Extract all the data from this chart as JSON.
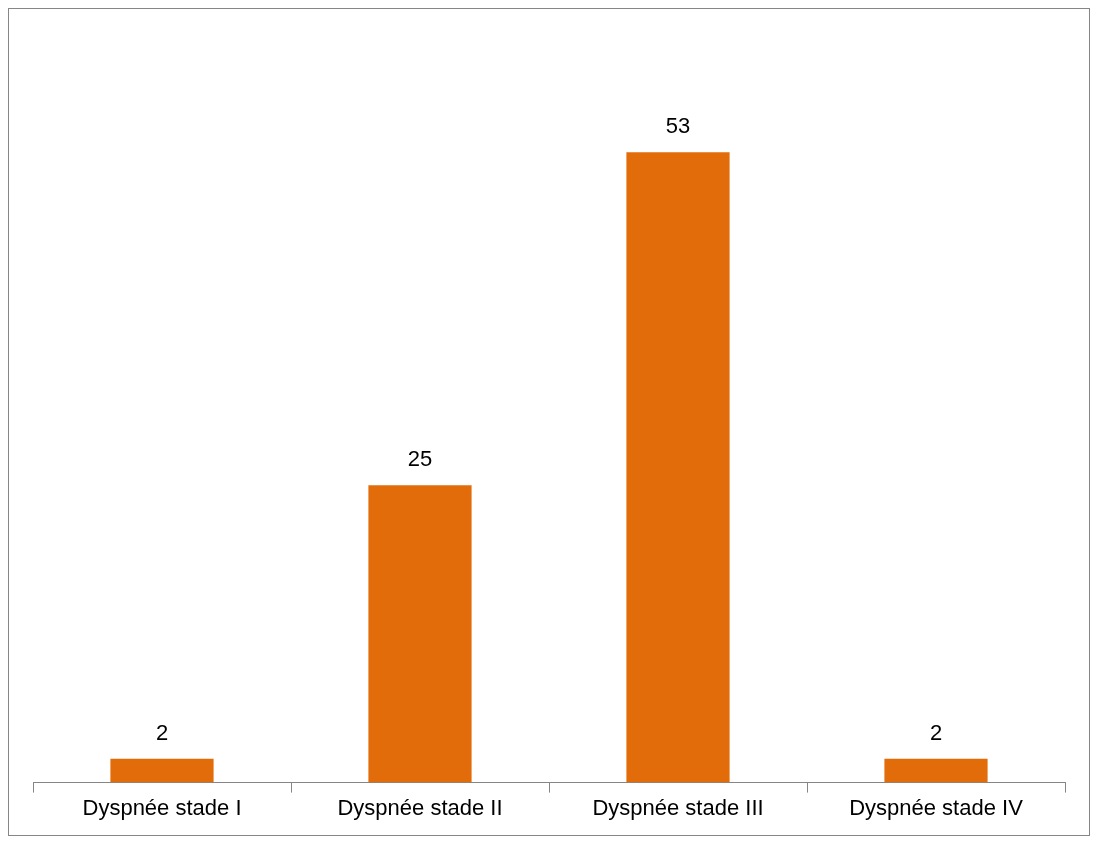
{
  "chart_data": {
    "type": "bar",
    "categories": [
      "Dyspnée stade I",
      "Dyspnée stade II",
      "Dyspnée stade III",
      "Dyspnée stade IV"
    ],
    "values": [
      2,
      25,
      53,
      2
    ],
    "color": "#e36c0a",
    "data_labels": true,
    "grid": false,
    "legend": false
  }
}
